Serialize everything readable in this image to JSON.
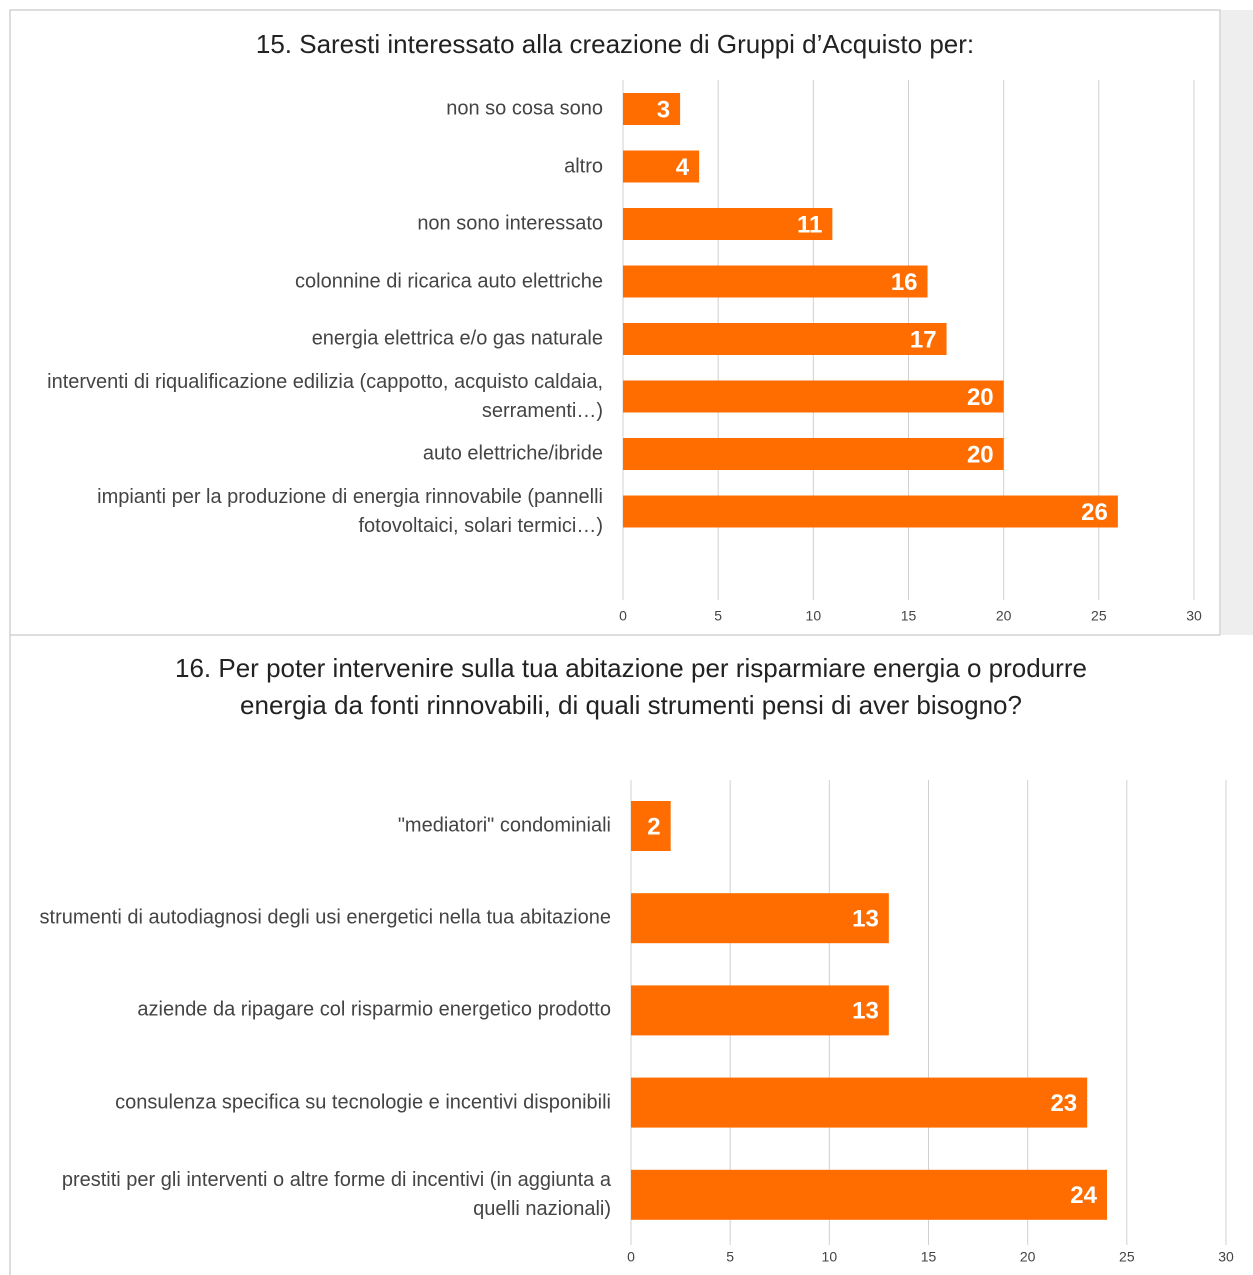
{
  "chart_data": [
    {
      "type": "bar",
      "orientation": "horizontal",
      "title": "15. Saresti interessato alla creazione di Gruppi d’Acquisto per:",
      "categories": [
        "non so cosa sono",
        "altro",
        "non sono interessato",
        "colonnine di ricarica auto elettriche",
        "energia elettrica e/o gas naturale",
        "interventi di riqualificazione edilizia (cappotto, acquisto caldaia, serramenti…)",
        "auto elettriche/ibride",
        "impianti per la produzione di energia rinnovabile (pannelli fotovoltaici, solari termici…)"
      ],
      "values": [
        3,
        4,
        11,
        16,
        17,
        20,
        20,
        26
      ],
      "color": "#ff6d00",
      "xlim": [
        0,
        30
      ],
      "xticks": [
        0,
        5,
        10,
        15,
        20,
        25,
        30
      ],
      "grid": true
    },
    {
      "type": "bar",
      "orientation": "horizontal",
      "title": "16. Per poter intervenire sulla tua abitazione per risparmiare energia o produrre energia da fonti rinnovabili, di quali strumenti pensi di aver bisogno?",
      "categories": [
        "\"mediatori\" condominiali",
        "strumenti di autodiagnosi degli usi energetici nella tua abitazione",
        "aziende da ripagare col risparmio energetico prodotto",
        "consulenza specifica su tecnologie e incentivi disponibili",
        "prestiti per gli interventi o altre forme di incentivi (in aggiunta a quelli nazionali)"
      ],
      "values": [
        2,
        13,
        13,
        23,
        24
      ],
      "color": "#ff6d00",
      "xlim": [
        0,
        30
      ],
      "xticks": [
        0,
        5,
        10,
        15,
        20,
        25,
        30
      ],
      "grid": true
    }
  ]
}
